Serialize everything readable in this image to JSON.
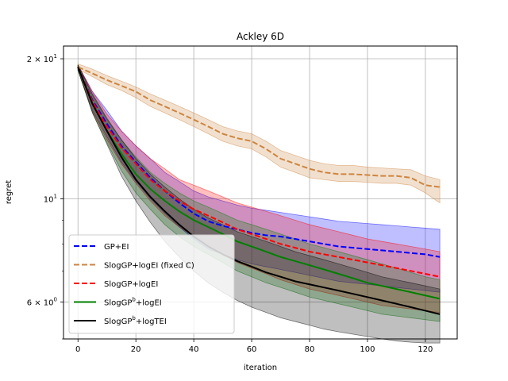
{
  "chart_data": {
    "type": "line",
    "title": "Ackley 6D",
    "xlabel": "iteration",
    "ylabel": "regret",
    "xlim": [
      -5,
      131
    ],
    "ylim": [
      5.0,
      21.3
    ],
    "yscale": "log",
    "grid": true,
    "legend_position": "lower-left",
    "xticks": [
      0,
      20,
      40,
      60,
      80,
      100,
      120
    ],
    "xtick_labels": [
      "0",
      "20",
      "40",
      "60",
      "80",
      "100",
      "120"
    ],
    "yticks": [
      6,
      10,
      20
    ],
    "ytick_labels": [
      {
        "base": "6",
        "sup": "0",
        "prefix": "6 × 10"
      },
      {
        "base": "10",
        "sup": "1",
        "prefix": "10"
      },
      {
        "base": "2",
        "sup": "1",
        "prefix": "2 × 10"
      }
    ],
    "x": [
      0,
      5,
      10,
      15,
      20,
      25,
      30,
      35,
      40,
      45,
      50,
      55,
      60,
      65,
      70,
      75,
      80,
      85,
      90,
      95,
      100,
      105,
      110,
      115,
      120,
      125
    ],
    "series": [
      {
        "name": "GP+EI",
        "color": "#0000ff",
        "dashed": true,
        "values": [
          19.2,
          16.3,
          14.5,
          13.0,
          12.0,
          11.1,
          10.4,
          9.8,
          9.3,
          8.95,
          8.75,
          8.6,
          8.45,
          8.35,
          8.3,
          8.2,
          8.1,
          8.0,
          7.9,
          7.85,
          7.8,
          7.75,
          7.7,
          7.65,
          7.6,
          7.5
        ],
        "lower": [
          18.9,
          15.5,
          13.6,
          12.0,
          10.9,
          10.0,
          9.3,
          8.7,
          8.2,
          7.8,
          7.6,
          7.4,
          7.25,
          7.15,
          7.05,
          6.95,
          6.85,
          6.75,
          6.65,
          6.6,
          6.55,
          6.5,
          6.45,
          6.4,
          6.35,
          6.3
        ],
        "upper": [
          19.4,
          17.0,
          15.5,
          14.0,
          13.0,
          12.2,
          11.4,
          10.9,
          10.4,
          10.1,
          9.9,
          9.7,
          9.55,
          9.45,
          9.35,
          9.25,
          9.15,
          9.05,
          8.95,
          8.9,
          8.85,
          8.8,
          8.75,
          8.7,
          8.65,
          8.6
        ]
      },
      {
        "name": "SlogGP+logEI (fixed C)",
        "color": "#cd853f",
        "dashed": true,
        "values": [
          19.2,
          18.6,
          18.0,
          17.5,
          17.0,
          16.3,
          15.8,
          15.3,
          14.8,
          14.3,
          13.8,
          13.5,
          13.3,
          12.8,
          12.2,
          11.9,
          11.6,
          11.4,
          11.3,
          11.3,
          11.25,
          11.2,
          11.2,
          11.1,
          10.7,
          10.6
        ],
        "lower": [
          19.0,
          18.3,
          17.6,
          17.1,
          16.5,
          15.8,
          15.3,
          14.8,
          14.3,
          13.8,
          13.3,
          13.0,
          12.8,
          12.3,
          11.7,
          11.4,
          11.1,
          11.0,
          10.9,
          10.9,
          10.85,
          10.8,
          10.8,
          10.7,
          10.3,
          9.8
        ],
        "upper": [
          19.5,
          19.0,
          18.4,
          17.9,
          17.4,
          16.8,
          16.3,
          15.8,
          15.3,
          14.8,
          14.3,
          14.0,
          13.8,
          13.3,
          12.7,
          12.4,
          12.1,
          11.9,
          11.8,
          11.8,
          11.7,
          11.65,
          11.6,
          11.55,
          11.2,
          11.0
        ]
      },
      {
        "name": "SlogGP+logEI",
        "color": "#ff0000",
        "dashed": true,
        "values": [
          19.2,
          16.2,
          14.3,
          12.9,
          11.9,
          11.0,
          10.4,
          9.9,
          9.5,
          9.2,
          8.9,
          8.6,
          8.4,
          8.2,
          8.0,
          7.85,
          7.7,
          7.6,
          7.5,
          7.4,
          7.3,
          7.2,
          7.1,
          7.0,
          6.9,
          6.8
        ],
        "lower": [
          18.9,
          15.4,
          13.4,
          11.9,
          10.8,
          9.9,
          9.2,
          8.7,
          8.3,
          7.9,
          7.6,
          7.3,
          7.1,
          6.9,
          6.7,
          6.55,
          6.4,
          6.3,
          6.2,
          6.1,
          6.0,
          5.9,
          5.85,
          5.8,
          5.75,
          5.7
        ],
        "upper": [
          19.4,
          17.0,
          15.2,
          14.0,
          13.0,
          12.2,
          11.6,
          11.0,
          10.7,
          10.4,
          10.1,
          9.8,
          9.6,
          9.4,
          9.2,
          9.0,
          8.8,
          8.65,
          8.5,
          8.35,
          8.2,
          8.1,
          8.0,
          7.9,
          7.8,
          7.7
        ]
      },
      {
        "name": "SlogGP^b+logEI",
        "color": "#008000",
        "dashed": false,
        "values": [
          19.2,
          16.0,
          14.0,
          12.5,
          11.3,
          10.5,
          9.9,
          9.4,
          9.0,
          8.7,
          8.4,
          8.1,
          7.9,
          7.7,
          7.5,
          7.35,
          7.2,
          7.05,
          6.9,
          6.75,
          6.6,
          6.5,
          6.4,
          6.3,
          6.2,
          6.1
        ],
        "lower": [
          18.9,
          15.3,
          13.2,
          11.5,
          10.3,
          9.5,
          8.8,
          8.3,
          7.9,
          7.6,
          7.3,
          7.0,
          6.8,
          6.6,
          6.45,
          6.3,
          6.15,
          6.05,
          5.95,
          5.85,
          5.75,
          5.65,
          5.6,
          5.55,
          5.5,
          5.45
        ],
        "upper": [
          19.4,
          16.7,
          14.8,
          13.4,
          12.3,
          11.4,
          10.8,
          10.3,
          9.9,
          9.6,
          9.3,
          9.0,
          8.8,
          8.6,
          8.4,
          8.2,
          8.0,
          7.85,
          7.7,
          7.55,
          7.4,
          7.25,
          7.1,
          6.95,
          6.8,
          6.7
        ]
      },
      {
        "name": "SlogGP^b+logTEI",
        "color": "#000000",
        "dashed": false,
        "values": [
          19.2,
          16.0,
          14.0,
          12.3,
          11.0,
          10.1,
          9.4,
          8.8,
          8.3,
          7.9,
          7.6,
          7.35,
          7.15,
          6.95,
          6.8,
          6.65,
          6.55,
          6.45,
          6.35,
          6.25,
          6.15,
          6.05,
          5.95,
          5.85,
          5.75,
          5.65
        ],
        "lower": [
          18.9,
          15.3,
          13.1,
          11.2,
          9.9,
          8.9,
          8.1,
          7.5,
          7.0,
          6.6,
          6.3,
          6.05,
          5.85,
          5.7,
          5.55,
          5.45,
          5.35,
          5.25,
          5.18,
          5.12,
          5.06,
          5.0,
          4.95,
          4.92,
          4.9,
          4.9
        ],
        "upper": [
          19.4,
          16.8,
          14.9,
          13.4,
          12.2,
          11.3,
          10.6,
          10.0,
          9.5,
          9.1,
          8.8,
          8.5,
          8.3,
          8.1,
          7.9,
          7.7,
          7.55,
          7.4,
          7.25,
          7.1,
          6.95,
          6.8,
          6.7,
          6.6,
          6.5,
          6.4
        ]
      }
    ],
    "legend": [
      {
        "label": "GP+EI",
        "base": "GP+EI",
        "sup": "",
        "rest": ""
      },
      {
        "label": "SlogGP+logEI (fixed C)",
        "base": "SlogGP+logEI (fixed C)",
        "sup": "",
        "rest": ""
      },
      {
        "label": "SlogGP+logEI",
        "base": "SlogGP+logEI",
        "sup": "",
        "rest": ""
      },
      {
        "label": "SlogGP^b+logEI",
        "base": "SlogGP",
        "sup": "b",
        "rest": "+logEI"
      },
      {
        "label": "SlogGP^b+logTEI",
        "base": "SlogGP",
        "sup": "b",
        "rest": "+logTEI"
      }
    ]
  }
}
